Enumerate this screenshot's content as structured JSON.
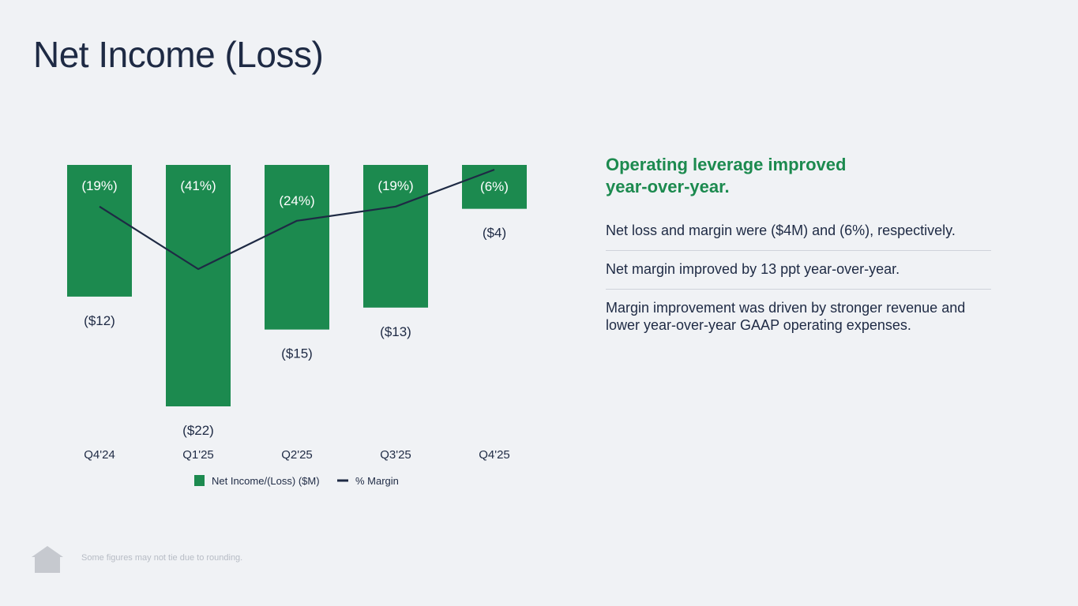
{
  "title": "Net Income (Loss)",
  "chart_data": {
    "type": "bar",
    "categories": [
      "Q4'24",
      "Q1'25",
      "Q2'25",
      "Q3'25",
      "Q4'25"
    ],
    "series": [
      {
        "name": "Net Income/(Loss) ($M)",
        "type": "bar",
        "values": [
          -12,
          -22,
          -15,
          -13,
          -4
        ],
        "labels": [
          "($12)",
          "($22)",
          "($15)",
          "($13)",
          "($4)"
        ]
      },
      {
        "name": "% Margin",
        "type": "line",
        "values": [
          -19,
          -41,
          -24,
          -19,
          -6
        ],
        "labels": [
          "(19%)",
          "(41%)",
          "(24%)",
          "(19%)",
          "(6%)"
        ]
      }
    ],
    "ylim": [
      -22,
      0
    ],
    "legend": [
      "Net Income/(Loss) ($M)",
      "% Margin"
    ],
    "legend_position": "bottom"
  },
  "colors": {
    "bar": "#1c8a4f",
    "line": "#1e2a44",
    "accent": "#1c8a4f",
    "text": "#1e2a44"
  },
  "panel": {
    "headline": "Operating leverage improved year-over-year.",
    "bullets": [
      "Net loss and margin were ($4M) and (6%), respectively.",
      "Net margin improved by 13 ppt year-over-year.",
      "Margin improvement was driven by stronger revenue and lower year-over-year GAAP operating expenses."
    ]
  },
  "footer": "Some figures may not tie due to rounding.",
  "logo_icon": "house-icon"
}
